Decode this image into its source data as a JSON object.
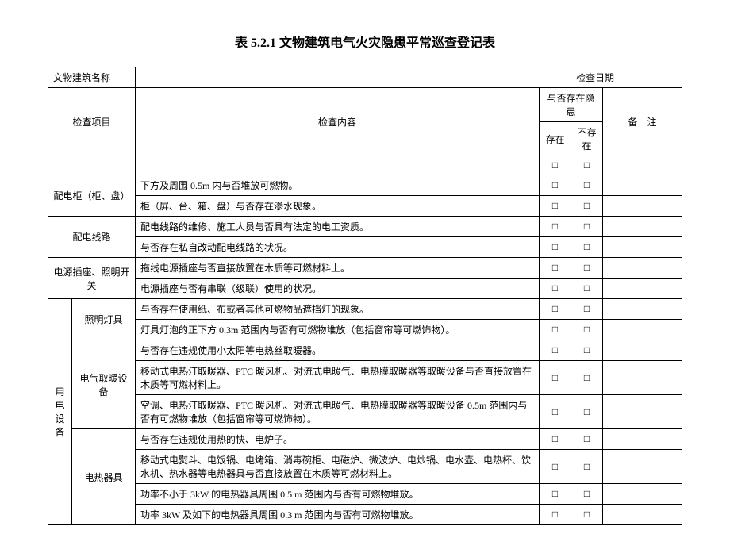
{
  "title": "表 5.2.1 文物建筑电气火灾隐患平常巡查登记表",
  "header": {
    "buildingName": "文物建筑名称",
    "checkDate": "检查日期",
    "checkItem": "检查项目",
    "checkContent": "检查内容",
    "hazardExists": "与否存在隐患",
    "exists": "存在",
    "notExists": "不存在",
    "remark": "备　注"
  },
  "checkbox": "□",
  "rows": {
    "r1_label": "配电柜（柜、盘）",
    "r1_c1": "下方及周围 0.5m 内与否堆放可燃物。",
    "r1_c2": "柜（屏、台、箱、盘）与否存在渗水现象。",
    "r2_label": "配电线路",
    "r2_c1": "配电线路的维修、施工人员与否具有法定的电工资质。",
    "r2_c2": "与否存在私自改动配电线路的状况。",
    "r3_label": "电源插座、照明开关",
    "r3_c1": "拖线电源插座与否直接放置在木质等可燃材料上。",
    "r3_c2": "电源插座与否有串联（级联）使用的状况。",
    "group_label": "用电设备",
    "r4_label": "照明灯具",
    "r4_c1": "与否存在使用纸、布或者其他可燃物品遮挡灯的现象。",
    "r4_c2": "灯具灯泡的正下方 0.3m 范围内与否有可燃物堆放（包括窗帘等可燃饰物）。",
    "r5_label": "电气取暖设备",
    "r5_c1": "与否存在违规使用小太阳等电热丝取暖器。",
    "r5_c2": "移动式电热汀取暖器、PTC 暖风机、对流式电暖气、电热膜取暖器等取暖设备与否直接放置在木质等可燃材料上。",
    "r5_c3": "空调、电热汀取暖器、PTC 暖风机、对流式电暖气、电热膜取暖器等取暖设备 0.5m 范围内与否有可燃物堆放（包括窗帘等可燃饰物）。",
    "r6_label": "电热器具",
    "r6_c1": "与否存在违规使用热的快、电炉子。",
    "r6_c2": "移动式电熨斗、电饭锅、电烤箱、消毒碗柜、电磁炉、微波炉、电炒锅、电水壶、电热杯、饮水机、热水器等电热器具与否直接放置在木质等可燃材料上。",
    "r6_c3": "功率不小于 3kW 的电热器具周围 0.5 m 范围内与否有可燃物堆放。",
    "r6_c4": "功率 3kW 及如下的电热器具周围 0.3 m 范围内与否有可燃物堆放。"
  }
}
